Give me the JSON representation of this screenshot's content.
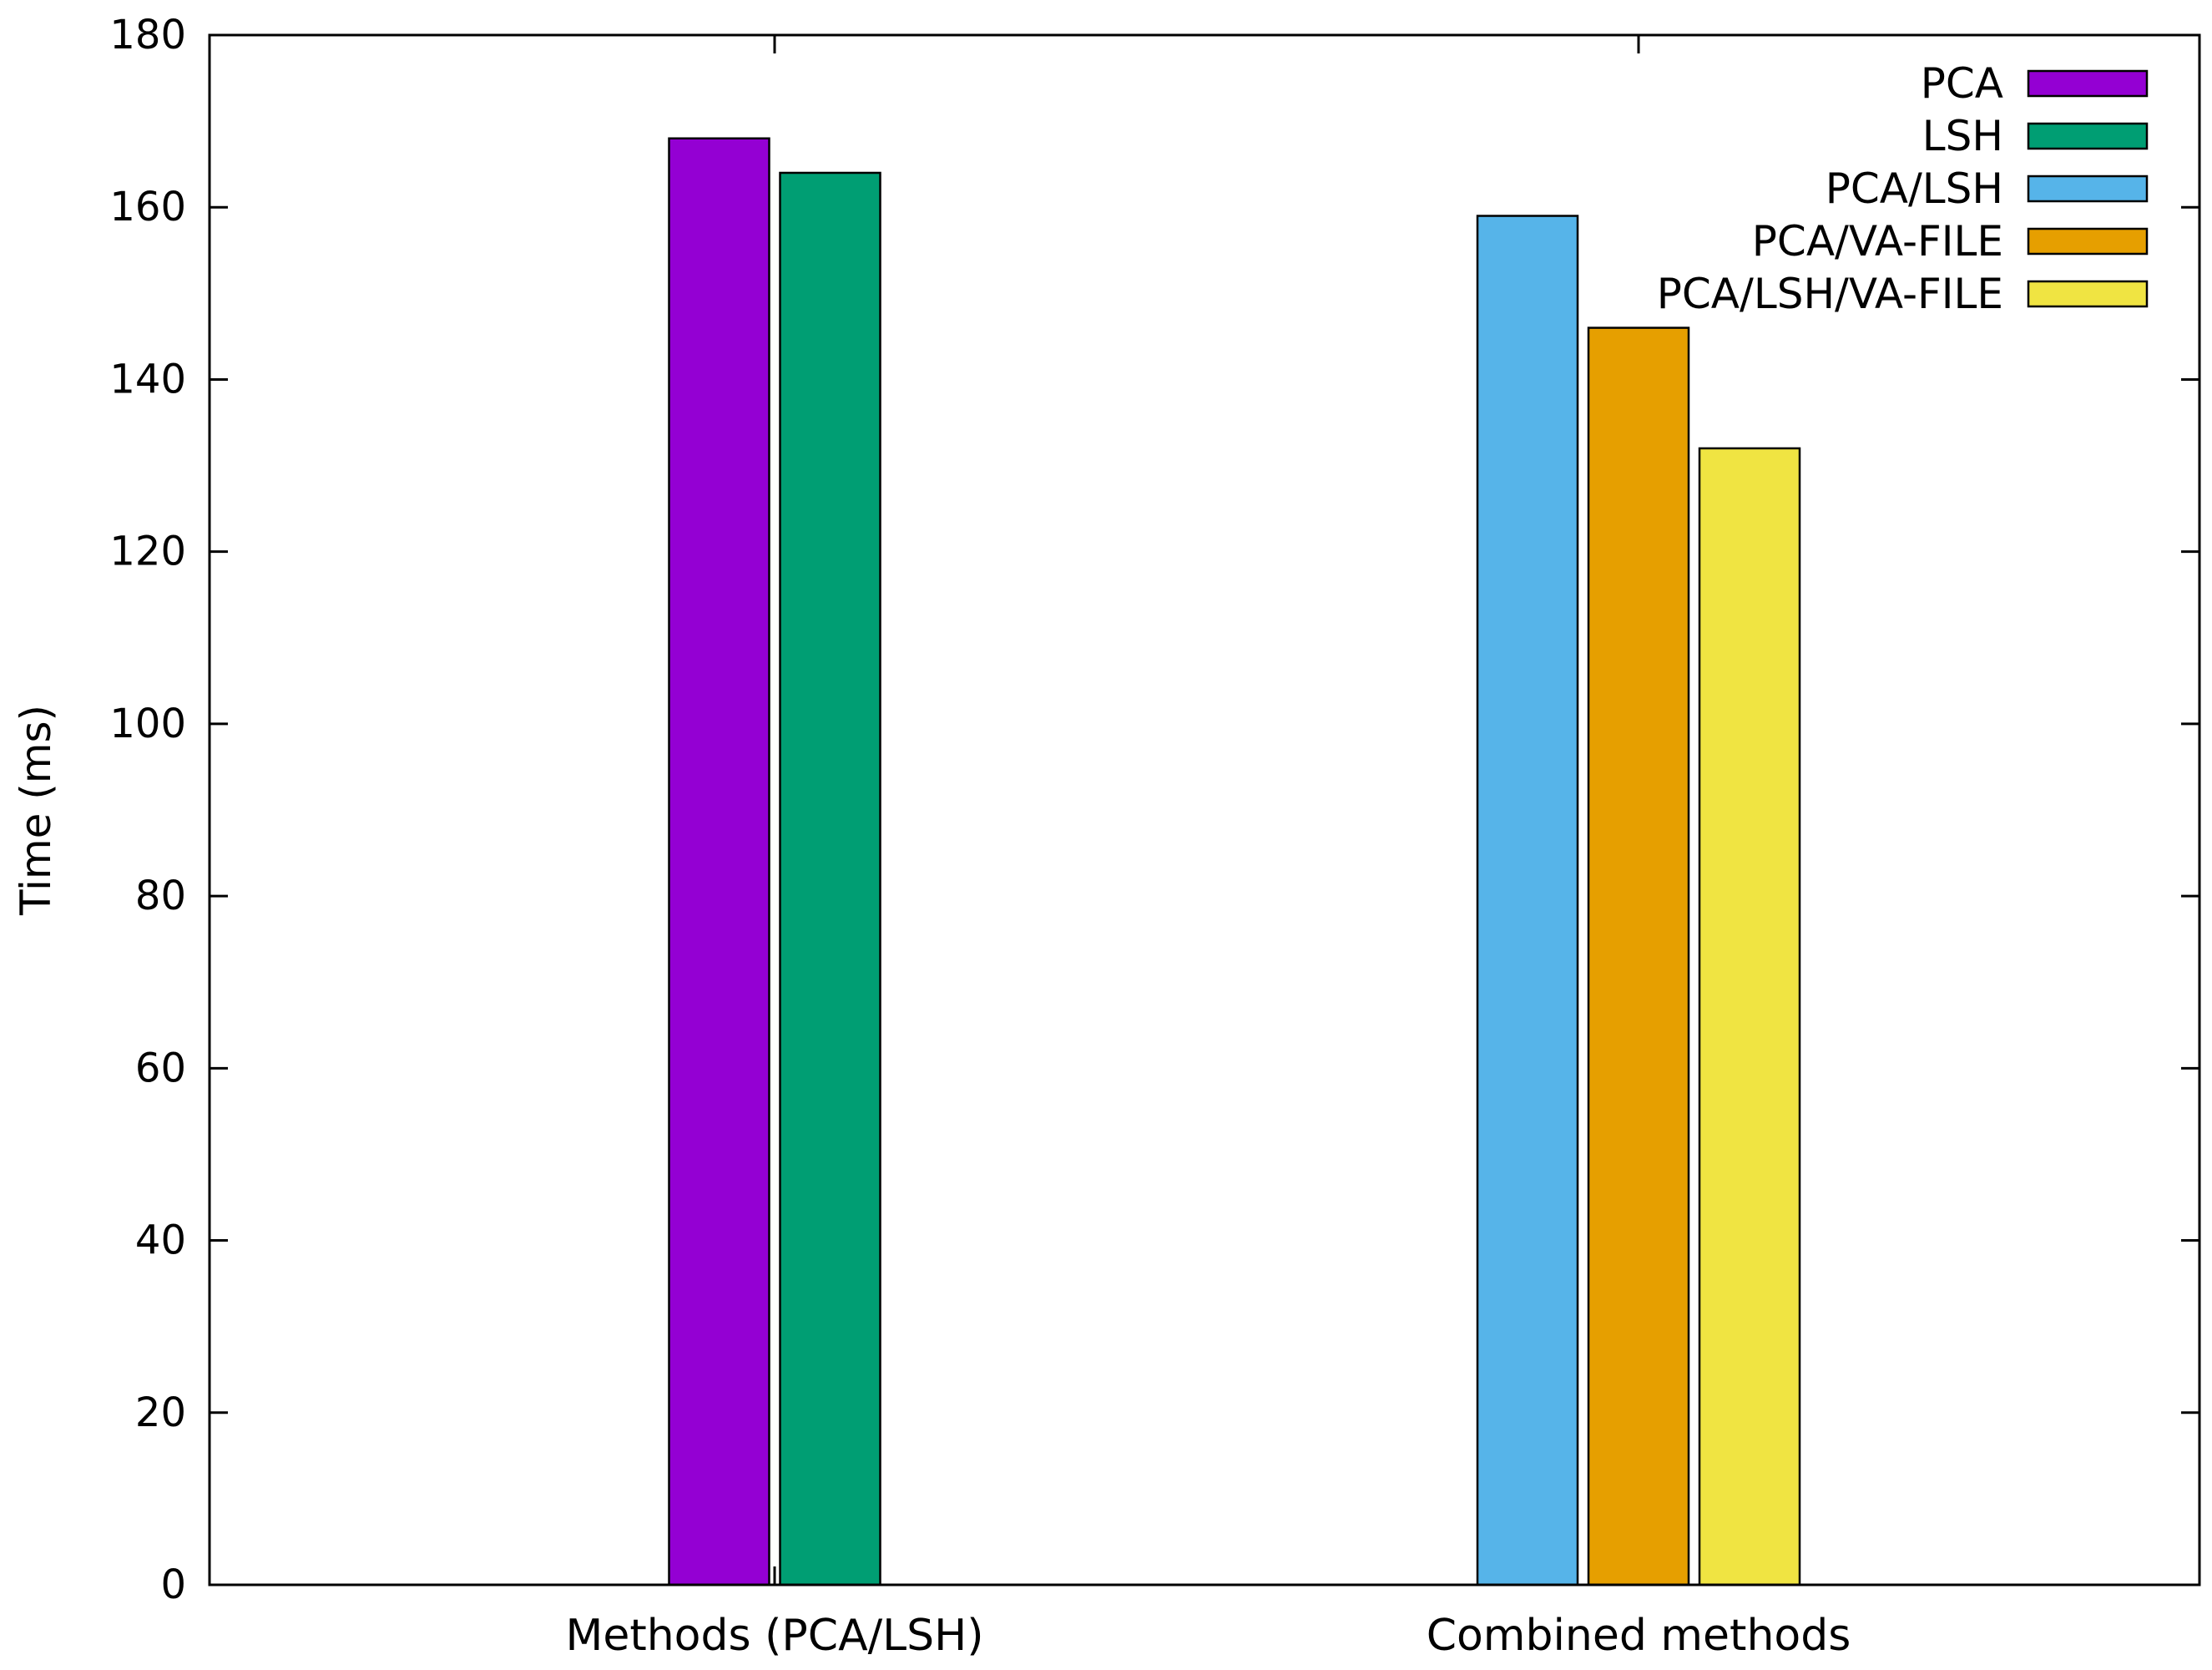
{
  "chart_data": {
    "type": "bar",
    "title": "",
    "xlabel": "",
    "ylabel": "Time (ms)",
    "ylim": [
      0,
      180
    ],
    "yticks": [
      "0",
      "20",
      "40",
      "60",
      "80",
      "100",
      "120",
      "140",
      "160",
      "180"
    ],
    "grid": false,
    "legend_position": "top-right",
    "groups": [
      {
        "label": "Methods (PCA/LSH)",
        "bars": [
          {
            "series": "PCA",
            "value": 168
          },
          {
            "series": "LSH",
            "value": 164
          }
        ]
      },
      {
        "label": "Combined methods",
        "bars": [
          {
            "series": "PCA/LSH",
            "value": 159
          },
          {
            "series": "PCA/VA-FILE",
            "value": 146
          },
          {
            "series": "PCA/LSH/VA-FILE",
            "value": 132
          }
        ]
      }
    ],
    "series": [
      {
        "name": "PCA",
        "color": "#9400d3"
      },
      {
        "name": "LSH",
        "color": "#009e73"
      },
      {
        "name": "PCA/LSH",
        "color": "#56b4e9"
      },
      {
        "name": "PCA/VA-FILE",
        "color": "#e69f00"
      },
      {
        "name": "PCA/LSH/VA-FILE",
        "color": "#f0e442"
      }
    ]
  }
}
